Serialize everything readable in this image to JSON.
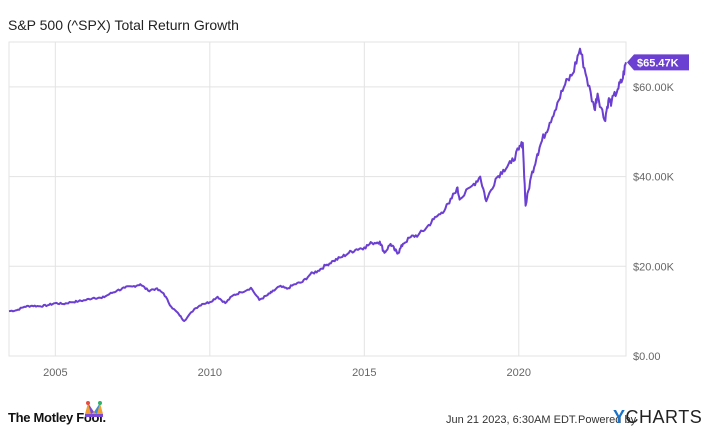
{
  "chart_data": {
    "type": "line",
    "title": "S&P 500 (^SPX) Total Return Growth",
    "xlabel": "",
    "ylabel": "",
    "xlim": [
      2003.5,
      2023.47
    ],
    "ylim": [
      0,
      70000
    ],
    "x_ticks": [
      {
        "value": 2005,
        "label": "2005"
      },
      {
        "value": 2010,
        "label": "2010"
      },
      {
        "value": 2015,
        "label": "2015"
      },
      {
        "value": 2020,
        "label": "2020"
      }
    ],
    "y_ticks": [
      {
        "value": 0,
        "label": "$0.00"
      },
      {
        "value": 20000,
        "label": "$20.00K"
      },
      {
        "value": 40000,
        "label": "$40.00K"
      },
      {
        "value": 60000,
        "label": "$60.00K"
      }
    ],
    "grid": {
      "vertical": true,
      "horizontal": true
    },
    "legend": "none",
    "last_value_label": "$65.47K",
    "line_color": "#6b3fd1",
    "series": [
      {
        "values": [
          [
            2003.5,
            10000
          ],
          [
            2003.75,
            10200
          ],
          [
            2004.0,
            11000
          ],
          [
            2004.25,
            11200
          ],
          [
            2004.5,
            11100
          ],
          [
            2004.75,
            11300
          ],
          [
            2005.0,
            11800
          ],
          [
            2005.25,
            11600
          ],
          [
            2005.5,
            12000
          ],
          [
            2005.75,
            12200
          ],
          [
            2006.0,
            12500
          ],
          [
            2006.25,
            13000
          ],
          [
            2006.5,
            12900
          ],
          [
            2006.75,
            13800
          ],
          [
            2007.0,
            14600
          ],
          [
            2007.25,
            15200
          ],
          [
            2007.5,
            15500
          ],
          [
            2007.75,
            16000
          ],
          [
            2008.0,
            14600
          ],
          [
            2008.25,
            15000
          ],
          [
            2008.5,
            14000
          ],
          [
            2008.75,
            11000
          ],
          [
            2009.0,
            9300
          ],
          [
            2009.17,
            7800
          ],
          [
            2009.5,
            10500
          ],
          [
            2009.75,
            11600
          ],
          [
            2010.0,
            12000
          ],
          [
            2010.25,
            13200
          ],
          [
            2010.5,
            11800
          ],
          [
            2010.75,
            13500
          ],
          [
            2011.0,
            14200
          ],
          [
            2011.33,
            15200
          ],
          [
            2011.6,
            12500
          ],
          [
            2011.85,
            13500
          ],
          [
            2012.0,
            14200
          ],
          [
            2012.25,
            15500
          ],
          [
            2012.5,
            15000
          ],
          [
            2012.75,
            16000
          ],
          [
            2013.0,
            16500
          ],
          [
            2013.25,
            18200
          ],
          [
            2013.5,
            19000
          ],
          [
            2013.75,
            20200
          ],
          [
            2014.0,
            21200
          ],
          [
            2014.25,
            22000
          ],
          [
            2014.5,
            23000
          ],
          [
            2014.75,
            23800
          ],
          [
            2015.0,
            24200
          ],
          [
            2015.25,
            25200
          ],
          [
            2015.5,
            25500
          ],
          [
            2015.65,
            23000
          ],
          [
            2015.85,
            25000
          ],
          [
            2016.0,
            23500
          ],
          [
            2016.1,
            23000
          ],
          [
            2016.25,
            25000
          ],
          [
            2016.5,
            26500
          ],
          [
            2016.75,
            27000
          ],
          [
            2017.0,
            28500
          ],
          [
            2017.25,
            30500
          ],
          [
            2017.5,
            32000
          ],
          [
            2017.75,
            34000
          ],
          [
            2018.0,
            37500
          ],
          [
            2018.1,
            35000
          ],
          [
            2018.5,
            38000
          ],
          [
            2018.75,
            40000
          ],
          [
            2018.95,
            34500
          ],
          [
            2019.25,
            39500
          ],
          [
            2019.5,
            41500
          ],
          [
            2019.75,
            43000
          ],
          [
            2020.0,
            46000
          ],
          [
            2020.13,
            47500
          ],
          [
            2020.22,
            33500
          ],
          [
            2020.4,
            40000
          ],
          [
            2020.6,
            45000
          ],
          [
            2020.75,
            48000
          ],
          [
            2021.0,
            52000
          ],
          [
            2021.25,
            56500
          ],
          [
            2021.5,
            60500
          ],
          [
            2021.75,
            63000
          ],
          [
            2021.98,
            68500
          ],
          [
            2022.2,
            62000
          ],
          [
            2022.45,
            55000
          ],
          [
            2022.55,
            58500
          ],
          [
            2022.78,
            52500
          ],
          [
            2022.9,
            57000
          ],
          [
            2023.0,
            56500
          ],
          [
            2023.2,
            59500
          ],
          [
            2023.35,
            61500
          ],
          [
            2023.47,
            65470
          ]
        ]
      }
    ]
  },
  "footer": {
    "brand": "The Motley Fool.",
    "timestamp": "Jun 21 2023, 6:30AM EDT.",
    "powered_by": "Powered by",
    "ycharts_y": "Y",
    "ycharts_rest": "CHARTS"
  }
}
